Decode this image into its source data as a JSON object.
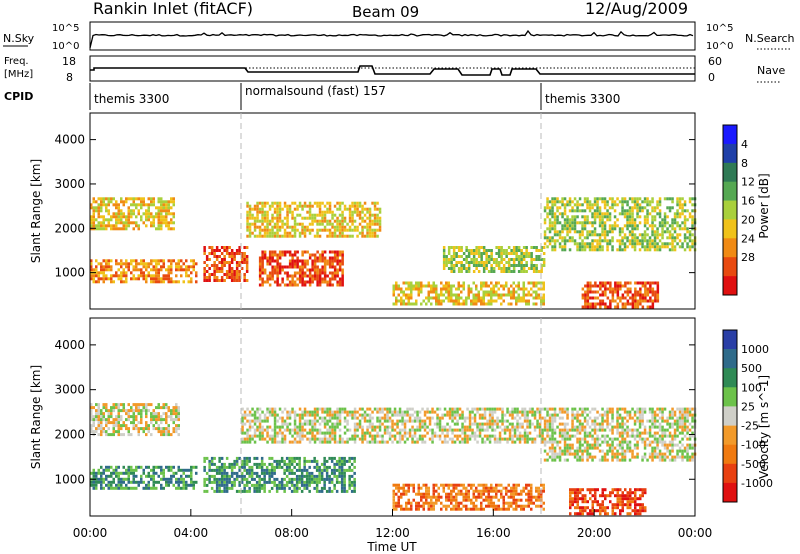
{
  "header": {
    "station": "Rankin Inlet (fitACF)",
    "beam": "Beam 09",
    "date": "12/Aug/2009"
  },
  "noise_panel": {
    "left_label": "N.Sky",
    "left_ticks": [
      "10^5",
      "10^0"
    ],
    "right_label": "N.Search",
    "right_ticks": [
      "10^5",
      "10^0"
    ]
  },
  "freq_panel": {
    "left_label_line1": "Freq.",
    "left_label_line2": "[MHz]",
    "left_ticks": [
      "18",
      "8"
    ],
    "right_label": "Nave",
    "right_ticks": [
      "60",
      "0"
    ]
  },
  "cpid_panel": {
    "label": "CPID",
    "segments": [
      {
        "text": "themis 3300",
        "start_hour": 0
      },
      {
        "text": "normalsound (fast) 157",
        "start_hour": 6
      },
      {
        "text": "themis 3300",
        "start_hour": 18
      }
    ]
  },
  "time_axis": {
    "label": "Time UT",
    "ticks": [
      "00:00",
      "04:00",
      "08:00",
      "12:00",
      "16:00",
      "20:00",
      "00:00"
    ]
  },
  "chart_data": [
    {
      "type": "heatmap",
      "title": "",
      "xlabel": "Time UT",
      "ylabel": "Slant Range [km]",
      "xlim_hours": [
        0,
        24
      ],
      "ylim_km": [
        180,
        4600
      ],
      "yticks": [
        "1000",
        "2000",
        "3000",
        "4000"
      ],
      "colorbar": {
        "label": "Power [dB]",
        "tick_labels": [
          "4",
          "8",
          "12",
          "16",
          "20",
          "24",
          "28"
        ],
        "colors": [
          "#1a1aff",
          "#1f3fa8",
          "#2f7a55",
          "#55a852",
          "#a9d03c",
          "#f0c21a",
          "#f08a14",
          "#e84a10",
          "#e01010"
        ]
      },
      "regions": [
        {
          "t_start": 0.0,
          "t_end": 3.3,
          "r_start": 2000,
          "r_end": 2700,
          "level": 5
        },
        {
          "t_start": 0.0,
          "t_end": 4.2,
          "r_start": 800,
          "r_end": 1300,
          "level": 6
        },
        {
          "t_start": 4.5,
          "t_end": 6.2,
          "r_start": 800,
          "r_end": 1600,
          "level": 7
        },
        {
          "t_start": 6.7,
          "t_end": 10.0,
          "r_start": 700,
          "r_end": 1500,
          "level": 7
        },
        {
          "t_start": 6.2,
          "t_end": 11.5,
          "r_start": 1800,
          "r_end": 2600,
          "level": 5
        },
        {
          "t_start": 12.0,
          "t_end": 18.0,
          "r_start": 300,
          "r_end": 800,
          "level": 5
        },
        {
          "t_start": 14.0,
          "t_end": 18.0,
          "r_start": 1000,
          "r_end": 1600,
          "level": 4
        },
        {
          "t_start": 18.0,
          "t_end": 24.0,
          "r_start": 1500,
          "r_end": 2700,
          "level": 4
        },
        {
          "t_start": 19.5,
          "t_end": 22.5,
          "r_start": 200,
          "r_end": 800,
          "level": 7
        }
      ]
    },
    {
      "type": "heatmap",
      "title": "",
      "xlabel": "Time UT",
      "ylabel": "Slant Range [km]",
      "xlim_hours": [
        0,
        24
      ],
      "ylim_km": [
        180,
        4600
      ],
      "yticks": [
        "1000",
        "2000",
        "3000",
        "4000"
      ],
      "colorbar": {
        "label": "Velocity [m s^-1]",
        "tick_labels": [
          "1000",
          "500",
          "100",
          "25",
          "-25",
          "-100",
          "-500",
          "-1000"
        ],
        "colors": [
          "#2a3fa6",
          "#2f6b8a",
          "#2f8a55",
          "#6cc24a",
          "#cfcfc8",
          "#f29a2a",
          "#f07a10",
          "#e84010",
          "#e01010"
        ]
      },
      "regions": [
        {
          "t_start": 0.0,
          "t_end": 3.5,
          "r_start": 2000,
          "r_end": 2700,
          "level": 4
        },
        {
          "t_start": 0.0,
          "t_end": 4.2,
          "r_start": 800,
          "r_end": 1300,
          "level": 2
        },
        {
          "t_start": 4.5,
          "t_end": 10.5,
          "r_start": 700,
          "r_end": 1500,
          "level": 2
        },
        {
          "t_start": 6.0,
          "t_end": 18.0,
          "r_start": 1800,
          "r_end": 2600,
          "level": 4
        },
        {
          "t_start": 12.0,
          "t_end": 18.0,
          "r_start": 300,
          "r_end": 900,
          "level": 6
        },
        {
          "t_start": 18.0,
          "t_end": 24.0,
          "r_start": 1400,
          "r_end": 2600,
          "level": 4
        },
        {
          "t_start": 19.0,
          "t_end": 22.0,
          "r_start": 200,
          "r_end": 800,
          "level": 7
        }
      ]
    }
  ]
}
